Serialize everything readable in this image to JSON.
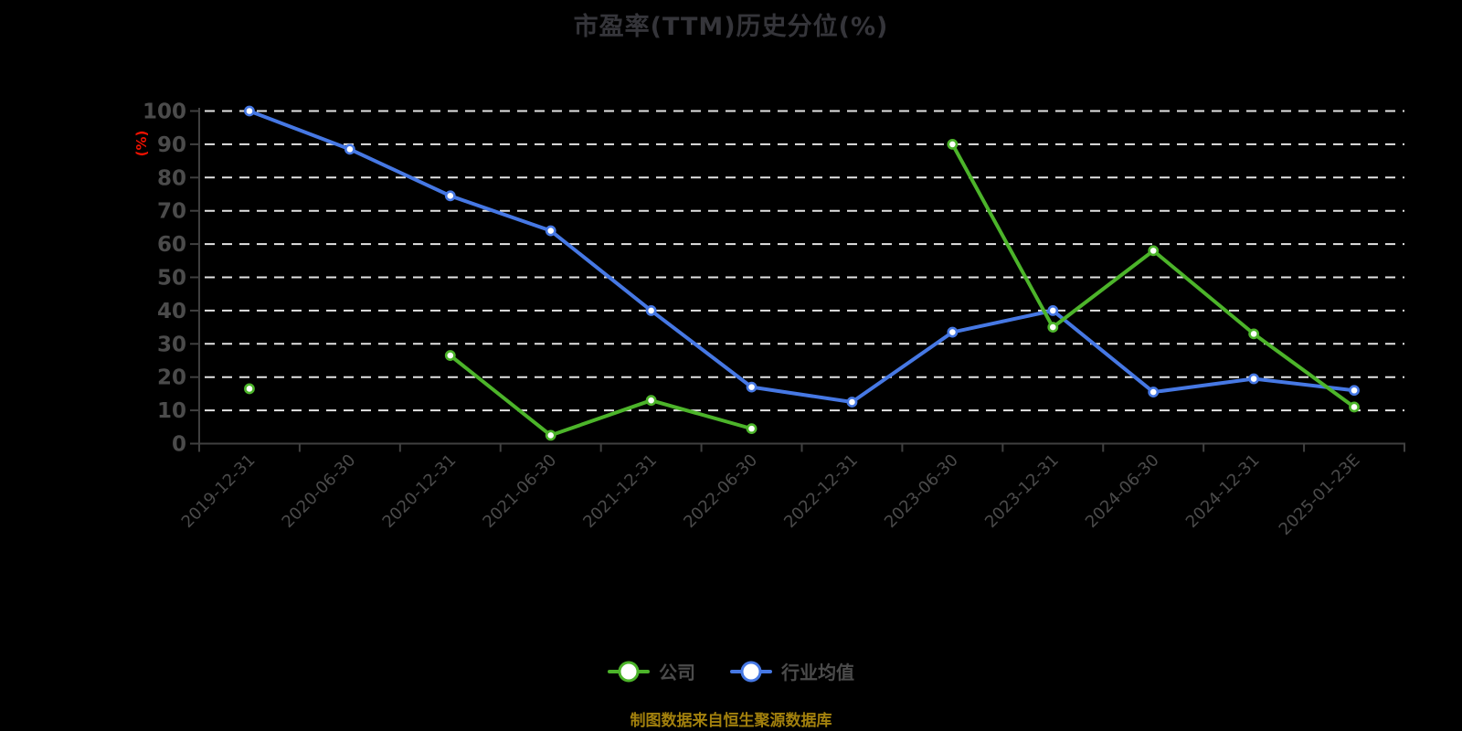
{
  "chart_data": {
    "type": "line",
    "title": "市盈率(TTM)历史分位(%)",
    "ylabel": "(%)",
    "xlabel": "",
    "ylim": [
      0,
      100
    ],
    "y_ticks": [
      0,
      10,
      20,
      30,
      40,
      50,
      60,
      70,
      80,
      90,
      100
    ],
    "grid": "horizontal-dashed",
    "legend_position": "bottom",
    "categories": [
      "2019-12-31",
      "2020-06-30",
      "2020-12-31",
      "2021-06-30",
      "2021-12-31",
      "2022-06-30",
      "2022-12-31",
      "2023-06-30",
      "2023-12-31",
      "2024-06-30",
      "2024-12-31",
      "2025-01-23E"
    ],
    "series": [
      {
        "name": "公司",
        "color": "#4cb42a",
        "values": [
          16.5,
          null,
          26.5,
          2.5,
          13,
          4.5,
          null,
          90,
          35,
          58,
          33,
          11
        ]
      },
      {
        "name": "行业均值",
        "color": "#4678e4",
        "values": [
          100,
          88.5,
          74.5,
          64,
          40,
          17,
          12.5,
          33.5,
          40,
          15.5,
          19.5,
          16
        ]
      }
    ],
    "source_note": "制图数据来自恒生聚源数据库",
    "colors": {
      "background": "#000000",
      "title": "#35353a",
      "axis": "#404040",
      "tick_label": "#4b4b4b",
      "gridline": "#e3e3e3",
      "unit_label": "#ee1100",
      "source_note": "#a2800d",
      "marker_fill": "#ffffff"
    }
  }
}
